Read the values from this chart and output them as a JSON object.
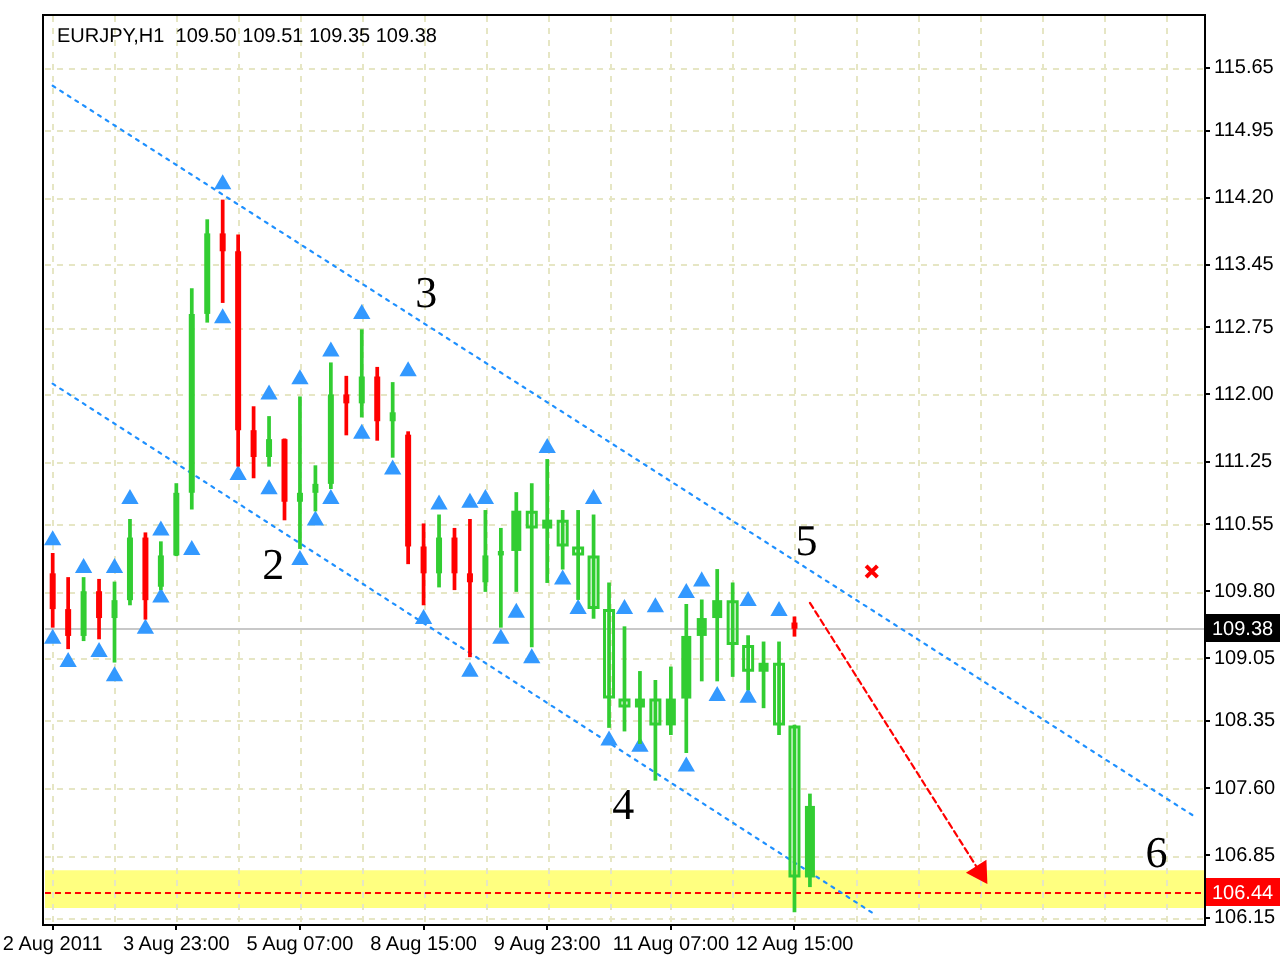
{
  "chart_data": {
    "type": "candlestick",
    "title": "EURJPY,H1  109.50 109.51 109.35 109.38",
    "categories": [
      "2 Aug 2011",
      null,
      null,
      null,
      null,
      null,
      null,
      null,
      "3 Aug 23:00",
      null,
      null,
      null,
      null,
      null,
      null,
      null,
      "5 Aug 07:00",
      null,
      null,
      null,
      null,
      null,
      null,
      null,
      "8 Aug 15:00",
      null,
      null,
      null,
      null,
      null,
      null,
      null,
      "9 Aug 23:00",
      null,
      null,
      null,
      null,
      null,
      null,
      null,
      "11 Aug 07:00",
      null,
      null,
      null,
      null,
      null,
      null,
      null,
      "12 Aug 15:00",
      null,
      null,
      null,
      null,
      null,
      null,
      null,
      null,
      null,
      null,
      null,
      null,
      null,
      null,
      null,
      null,
      null,
      null,
      null,
      null,
      null,
      null,
      null,
      null,
      null,
      null
    ],
    "ylim": [
      106.08,
      116.23
    ],
    "yticks": [
      115.65,
      114.95,
      {
        "value": 114.2,
        "label": "114.20"
      },
      113.45,
      112.75,
      {
        "value": 112,
        "label": "112.00"
      },
      111.25,
      110.55,
      {
        "value": 109.8,
        "label": "109.80"
      },
      109.05,
      108.35,
      {
        "value": 107.6,
        "label": "107.60"
      },
      106.85,
      106.15
    ],
    "grid": true,
    "series": [
      {
        "ohlc": [
          [
            110.0,
            110.22,
            109.4,
            109.6
          ],
          [
            109.6,
            109.95,
            109.16,
            109.3
          ],
          [
            109.3,
            109.95,
            109.25,
            109.8
          ],
          [
            109.8,
            109.93,
            109.27,
            109.5
          ],
          [
            109.5,
            109.9,
            109.01,
            109.7
          ],
          [
            109.7,
            110.6,
            109.65,
            110.4
          ],
          [
            110.4,
            110.45,
            109.49,
            109.7
          ],
          [
            109.85,
            110.35,
            109.82,
            110.2
          ],
          [
            110.2,
            111.0,
            110.2,
            110.9
          ],
          [
            110.9,
            113.18,
            110.72,
            112.9
          ],
          [
            112.9,
            113.95,
            112.81,
            113.8
          ],
          [
            113.8,
            114.17,
            113.03,
            113.6
          ],
          [
            113.6,
            113.78,
            111.2,
            111.6
          ],
          [
            111.6,
            111.86,
            111.07,
            111.3
          ],
          [
            111.3,
            111.75,
            111.2,
            111.5
          ],
          [
            111.5,
            111.5,
            110.6,
            110.8
          ],
          [
            110.8,
            111.97,
            110.28,
            110.9
          ],
          [
            110.9,
            111.2,
            110.7,
            111.0
          ],
          [
            111.0,
            112.35,
            110.95,
            112.0
          ],
          [
            112.0,
            112.2,
            111.55,
            111.9
          ],
          [
            111.9,
            112.72,
            111.75,
            112.2
          ],
          [
            112.2,
            112.3,
            111.49,
            111.7
          ],
          [
            111.7,
            112.13,
            111.3,
            111.8
          ],
          [
            111.55,
            111.58,
            110.11,
            110.3
          ],
          [
            110.3,
            110.55,
            109.65,
            110.0
          ],
          [
            110.0,
            110.65,
            109.85,
            110.4
          ],
          [
            110.4,
            110.5,
            109.82,
            110.0
          ],
          [
            110.0,
            110.6,
            109.07,
            109.9
          ],
          [
            109.9,
            110.7,
            109.8,
            110.2
          ],
          [
            110.2,
            110.5,
            109.4,
            110.25
          ],
          null,
          null,
          null,
          null,
          null,
          null,
          null,
          null,
          null,
          null,
          null,
          null,
          null,
          null,
          null,
          null,
          null,
          null,
          [
            109.45,
            109.51,
            109.3,
            109.38
          ],
          null,
          null,
          null,
          null,
          null,
          null,
          null,
          null,
          null,
          null,
          null,
          null,
          null,
          null,
          null,
          null,
          null,
          null,
          null,
          null,
          null,
          null,
          null,
          null,
          null,
          null
        ],
        "colors": [
          "#ff0000",
          "#ff0000",
          "#32cd32",
          "#ff0000",
          "#32cd32",
          "#32cd32",
          "#ff0000",
          "#32cd32",
          "#32cd32",
          "#32cd32",
          "#32cd32",
          "#ff0000",
          "#ff0000",
          "#ff0000",
          "#32cd32",
          "#ff0000",
          "#32cd32",
          "#32cd32",
          "#32cd32",
          "#ff0000",
          "#32cd32",
          "#ff0000",
          "#32cd32",
          "#ff0000",
          "#ff0000",
          "#32cd32",
          "#ff0000",
          "#ff0000",
          "#32cd32",
          "#32cd32",
          null,
          null,
          null,
          null,
          null,
          null,
          null,
          null,
          null,
          null,
          null,
          null,
          null,
          null,
          null,
          null,
          null,
          null,
          "#ff0000",
          null,
          null,
          null,
          null,
          null,
          null,
          null,
          null,
          null,
          null,
          null,
          null,
          null,
          null,
          null,
          null,
          null,
          null,
          null,
          null,
          null,
          null,
          null,
          null,
          null,
          null
        ]
      },
      {
        "ohlc": [
          null,
          null,
          null,
          null,
          null,
          null,
          null,
          null,
          null,
          null,
          null,
          null,
          null,
          null,
          null,
          null,
          null,
          null,
          null,
          null,
          null,
          null,
          null,
          null,
          null,
          null,
          null,
          null,
          null,
          null,
          [
            110.25,
            110.9,
            109.8,
            110.7
          ],
          [
            110.7,
            111.0,
            109.18,
            110.5
          ],
          [
            110.5,
            111.27,
            109.9,
            110.6
          ],
          [
            110.6,
            110.7,
            110.05,
            110.3
          ],
          [
            110.3,
            110.7,
            109.71,
            110.2
          ],
          [
            110.2,
            110.65,
            109.5,
            109.6
          ],
          [
            109.6,
            109.89,
            108.28,
            108.6
          ],
          [
            108.6,
            109.4,
            108.24,
            108.5
          ],
          [
            108.5,
            108.9,
            108.1,
            108.6
          ],
          [
            108.6,
            108.8,
            107.69,
            108.3
          ],
          [
            108.3,
            108.95,
            108.2,
            108.6
          ],
          [
            108.6,
            109.65,
            108.0,
            109.3
          ],
          [
            109.3,
            109.7,
            108.8,
            109.5
          ],
          [
            109.5,
            110.04,
            108.8,
            109.7
          ],
          [
            109.7,
            109.89,
            108.85,
            109.2
          ],
          [
            109.2,
            109.3,
            108.7,
            108.9
          ],
          [
            108.9,
            109.23,
            108.5,
            109.0
          ],
          [
            109.0,
            109.23,
            108.2,
            108.3
          ],
          [
            108.3,
            108.3,
            106.22,
            106.6
          ],
          [
            106.6,
            107.53,
            106.5,
            107.4
          ],
          null,
          null,
          null,
          null,
          null,
          null,
          null,
          null,
          null,
          null,
          null,
          null,
          null,
          null,
          null,
          null,
          null,
          null,
          null,
          null,
          null,
          null,
          null,
          null,
          null
        ],
        "color": "#32cd32"
      },
      {
        "type": "line",
        "color": "#1e90ff",
        "line_style": "dotted",
        "values": [
          115.45,
          null,
          null,
          null,
          null,
          null,
          null,
          null,
          null,
          null,
          null,
          null,
          null,
          null,
          null,
          null,
          null,
          null,
          null,
          null,
          null,
          null,
          null,
          null,
          null,
          null,
          null,
          null,
          null,
          null,
          null,
          null,
          null,
          null,
          null,
          null,
          null,
          null,
          null,
          null,
          null,
          null,
          null,
          null,
          null,
          null,
          null,
          null,
          null,
          null,
          null,
          null,
          null,
          null,
          null,
          null,
          null,
          null,
          null,
          null,
          null,
          null,
          null,
          null,
          null,
          null,
          null,
          null,
          null,
          null,
          null,
          null,
          null,
          null,
          107.27
        ]
      },
      {
        "type": "line",
        "color": "#1e90ff",
        "line_style": "dotted",
        "values": [
          112.12,
          null,
          null,
          null,
          null,
          null,
          null,
          null,
          null,
          null,
          null,
          null,
          null,
          null,
          null,
          null,
          null,
          null,
          null,
          null,
          null,
          null,
          null,
          null,
          null,
          null,
          null,
          null,
          null,
          null,
          null,
          null,
          null,
          null,
          null,
          null,
          null,
          null,
          null,
          null,
          null,
          null,
          null,
          null,
          null,
          null,
          null,
          null,
          null,
          null,
          null,
          null,
          null,
          106.21,
          null,
          null,
          null,
          null,
          null,
          null,
          null,
          null,
          null,
          null,
          null,
          null,
          null,
          null,
          null,
          null,
          null,
          null,
          null,
          null,
          null
        ]
      },
      {
        "type": "line",
        "color": "#ff0000",
        "line_style": "dashed",
        "marker": "triangle",
        "values": [
          null,
          null,
          null,
          null,
          null,
          null,
          null,
          null,
          null,
          null,
          null,
          null,
          null,
          null,
          null,
          null,
          null,
          null,
          null,
          null,
          null,
          null,
          null,
          null,
          null,
          null,
          null,
          null,
          null,
          null,
          null,
          null,
          null,
          null,
          null,
          null,
          null,
          null,
          null,
          null,
          null,
          null,
          null,
          null,
          null,
          null,
          null,
          null,
          null,
          109.67,
          null,
          null,
          null,
          null,
          null,
          null,
          null,
          null,
          null,
          null,
          106.66,
          null,
          null,
          null,
          null,
          null,
          null,
          null,
          null,
          null,
          null,
          null,
          null,
          null,
          null
        ]
      },
      {
        "type": "scatter",
        "color": "#ff0000",
        "marker": "cross",
        "values": [
          null,
          null,
          null,
          null,
          null,
          null,
          null,
          null,
          null,
          null,
          null,
          null,
          null,
          null,
          null,
          null,
          null,
          null,
          null,
          null,
          null,
          null,
          null,
          null,
          null,
          null,
          null,
          null,
          null,
          null,
          null,
          null,
          null,
          null,
          null,
          null,
          null,
          null,
          null,
          null,
          null,
          null,
          null,
          null,
          null,
          null,
          null,
          null,
          null,
          null,
          null,
          null,
          null,
          110.02,
          null,
          null,
          null,
          null,
          null,
          null,
          null,
          null,
          null,
          null,
          null,
          null,
          null,
          null,
          null,
          null,
          null,
          null,
          null,
          null,
          null
        ]
      },
      {
        "type": "scatter",
        "color": "#3399ff",
        "marker": "triangle",
        "values": [
          110.37,
          null,
          110.06,
          null,
          110.06,
          110.83,
          null,
          110.48,
          null,
          null,
          null,
          114.35,
          null,
          null,
          112.0,
          null,
          112.17,
          null,
          112.48,
          null,
          112.9,
          null,
          null,
          112.26,
          null,
          110.77,
          null,
          110.79,
          110.83,
          null,
          null,
          null,
          111.4,
          null,
          null,
          110.83,
          null,
          109.6,
          null,
          109.62,
          null,
          109.78,
          109.91,
          null,
          null,
          109.69,
          null,
          109.58,
          null,
          null,
          null,
          null,
          null,
          null,
          null,
          null,
          null,
          null,
          null,
          null,
          null,
          null,
          null,
          null,
          null,
          null,
          null,
          null,
          null,
          null,
          null,
          null,
          null,
          null,
          null
        ]
      },
      {
        "type": "scatter",
        "color": "#3399ff",
        "marker": "triangle",
        "values": [
          109.27,
          109.01,
          null,
          109.12,
          108.85,
          null,
          109.38,
          109.73,
          null,
          110.26,
          null,
          112.85,
          111.1,
          null,
          110.94,
          null,
          110.15,
          110.59,
          110.83,
          null,
          111.56,
          null,
          111.16,
          null,
          109.49,
          null,
          null,
          108.9,
          null,
          109.27,
          109.56,
          109.05,
          null,
          109.93,
          109.6,
          null,
          108.13,
          null,
          108.06,
          null,
          null,
          107.84,
          null,
          108.63,
          null,
          108.61,
          null,
          null,
          null,
          null,
          null,
          null,
          null,
          null,
          null,
          null,
          null,
          null,
          null,
          null,
          null,
          null,
          null,
          null,
          null,
          null,
          null,
          null,
          null,
          null,
          null,
          null,
          null,
          null,
          null
        ]
      }
    ],
    "ref_lines": [
      {
        "axis": "y",
        "value": 109.38,
        "label": "109.38",
        "color": "#c8c8c8"
      },
      {
        "axis": "y",
        "value": 106.44,
        "label": "106.44",
        "color": "#ff0000",
        "line_style": "dashed"
      }
    ],
    "bands": [
      {
        "axis": "y",
        "from": 106.26,
        "to": 106.68,
        "color": "#ffff80"
      }
    ],
    "annotations": [
      "2",
      "3",
      "4",
      "5",
      "6"
    ]
  }
}
